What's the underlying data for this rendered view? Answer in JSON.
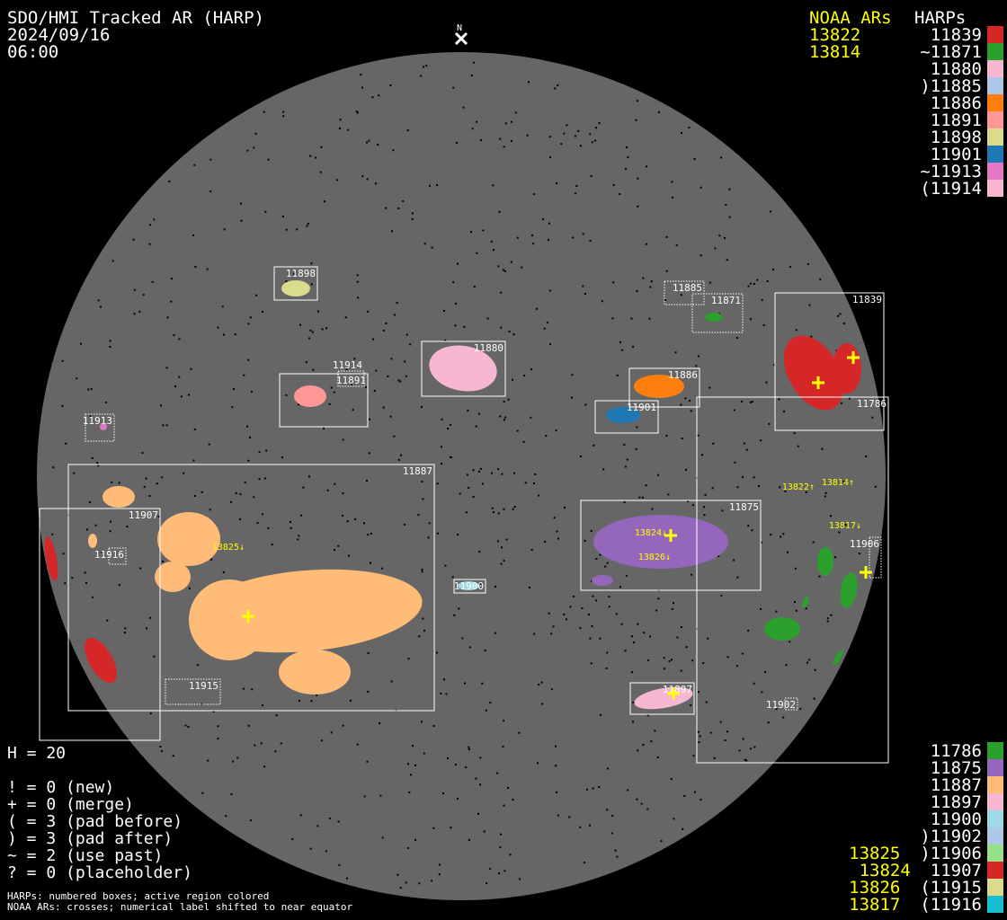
{
  "header": {
    "title": "SDO/HMI Tracked AR (HARP)",
    "date": "2024/09/16",
    "time": "06:00",
    "north": "N"
  },
  "noaa_top": {
    "heading": "NOAA ARs",
    "items": [
      "13822",
      "13814"
    ]
  },
  "harps_top": {
    "heading": "HARPs",
    "items": [
      {
        "label": "11839",
        "color": "#d62728"
      },
      {
        "label": "~11871",
        "color": "#2ca02c"
      },
      {
        "label": "11880",
        "color": "#f7b6d2"
      },
      {
        "label": ")11885",
        "color": "#aec7e8"
      },
      {
        "label": "11886",
        "color": "#ff7f0e"
      },
      {
        "label": "11891",
        "color": "#ff9896"
      },
      {
        "label": "11898",
        "color": "#dbdb8d"
      },
      {
        "label": "11901",
        "color": "#1f77b4"
      },
      {
        "label": "~11913",
        "color": "#e377c2"
      },
      {
        "label": "(11914",
        "color": "#f7b6d2"
      }
    ]
  },
  "harps_bottom": {
    "items": [
      {
        "label": "11786",
        "color": "#2ca02c",
        "noaa": ""
      },
      {
        "label": "11875",
        "color": "#9467bd",
        "noaa": ""
      },
      {
        "label": "11887",
        "color": "#ffbb78",
        "noaa": ""
      },
      {
        "label": "11897",
        "color": "#f7b6d2",
        "noaa": ""
      },
      {
        "label": "11900",
        "color": "#9edae5",
        "noaa": ""
      },
      {
        "label": ")11902",
        "color": "#aec7e8",
        "noaa": ""
      },
      {
        "label": ")11906",
        "color": "#98df8a",
        "noaa": "13825"
      },
      {
        "label": "11907",
        "color": "#d62728",
        "noaa": "13824"
      },
      {
        "label": "(11915",
        "color": "#dbdb8d",
        "noaa": "13826"
      },
      {
        "label": "(11916",
        "color": "#17becf",
        "noaa": "13817"
      }
    ]
  },
  "stats": {
    "h": "H = 20",
    "lines": [
      "! = 0 (new)",
      "+ = 0 (merge)",
      "( = 3 (pad before)",
      ") = 3 (pad after)",
      "~ = 2 (use past)",
      "? = 0 (placeholder)"
    ]
  },
  "notes": [
    "HARPs: numbered boxes; active region colored",
    "NOAA ARs: crosses; numerical label shifted to near equator"
  ],
  "disk": {
    "labels": {
      "11898": "11898",
      "11885": "11885",
      "11871": "11871",
      "11839": "11839",
      "11880": "11880",
      "11914": "11914",
      "11891": "11891",
      "11886": "11886",
      "11901": "11901",
      "11786": "11786",
      "11913": "11913",
      "11887": "11887",
      "11907": "11907",
      "11916": "11916",
      "11900": "11900",
      "11875": "11875",
      "11897": "11897",
      "11915": "11915",
      "11906": "11906",
      "11902": "11902"
    },
    "noaa_labels": [
      "13825↓",
      "13824↓",
      "13826↓",
      "13822↑",
      "13814↑",
      "13817↓"
    ]
  }
}
